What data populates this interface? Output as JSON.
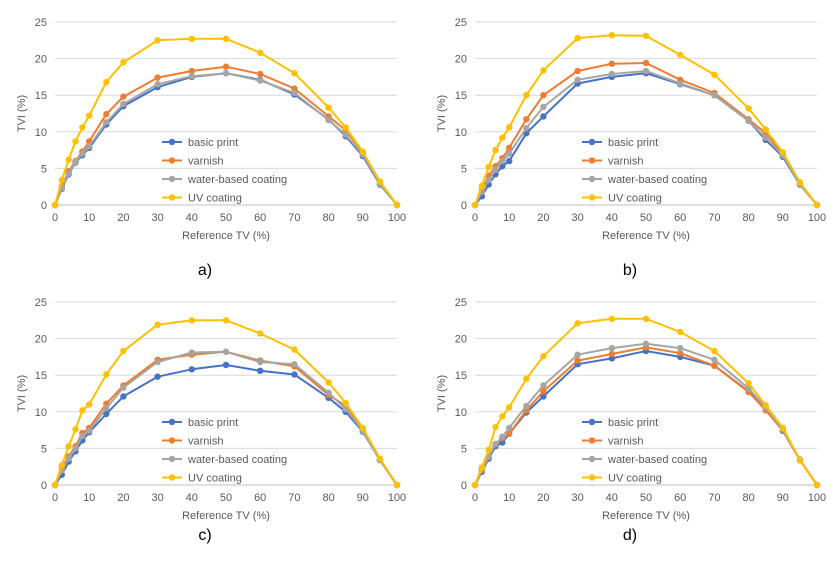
{
  "colors": {
    "basic_print": "#4472c4",
    "varnish": "#ed7d31",
    "water_based": "#a5a5a5",
    "uv": "#ffc000",
    "grid": "#d9d9d9",
    "axis": "#bfbfbf",
    "text": "#595959"
  },
  "panel_labels": [
    "a)",
    "b)",
    "c)",
    "d)"
  ],
  "chart_data": [
    {
      "type": "line",
      "panel": "a)",
      "xlabel": "Reference TV (%)",
      "ylabel": "TVI (%)",
      "xlim": [
        0,
        100
      ],
      "ylim": [
        0,
        25
      ],
      "xticks": [
        0,
        10,
        20,
        30,
        40,
        50,
        60,
        70,
        80,
        90,
        100
      ],
      "yticks": [
        0,
        5,
        10,
        15,
        20,
        25
      ],
      "grid": "horizontal",
      "legend": "lower-center",
      "x": [
        0,
        2,
        4,
        6,
        8,
        10,
        15,
        20,
        30,
        40,
        50,
        60,
        70,
        80,
        85,
        90,
        95,
        100
      ],
      "series": [
        {
          "name": "basic print",
          "color": "#4472c4",
          "values": [
            0,
            2.2,
            4.2,
            5.8,
            6.8,
            7.8,
            11.0,
            13.5,
            16.1,
            17.5,
            18.0,
            17.1,
            15.1,
            11.7,
            9.4,
            6.7,
            2.8,
            0
          ]
        },
        {
          "name": "varnish",
          "color": "#ed7d31",
          "values": [
            0,
            2.6,
            4.6,
            6.0,
            7.3,
            8.7,
            12.4,
            14.8,
            17.4,
            18.3,
            18.9,
            17.9,
            15.9,
            12.1,
            10.2,
            7.2,
            3.1,
            0
          ]
        },
        {
          "name": "water-based coating",
          "color": "#a5a5a5",
          "values": [
            0,
            2.3,
            4.3,
            5.9,
            7.0,
            8.0,
            11.3,
            13.8,
            16.5,
            17.6,
            18.0,
            17.0,
            15.3,
            11.6,
            9.6,
            6.9,
            2.9,
            0
          ]
        },
        {
          "name": "UV coating",
          "color": "#ffc000",
          "values": [
            0,
            3.4,
            6.2,
            8.7,
            10.6,
            12.2,
            16.8,
            19.5,
            22.5,
            22.7,
            22.7,
            20.8,
            18.0,
            13.3,
            10.6,
            7.3,
            3.2,
            0
          ]
        }
      ]
    },
    {
      "type": "line",
      "panel": "b)",
      "xlabel": "Reference TV (%)",
      "ylabel": "TVI (%)",
      "xlim": [
        0,
        100
      ],
      "ylim": [
        0,
        25
      ],
      "xticks": [
        0,
        10,
        20,
        30,
        40,
        50,
        60,
        70,
        80,
        90,
        100
      ],
      "yticks": [
        0,
        5,
        10,
        15,
        20,
        25
      ],
      "grid": "horizontal",
      "legend": "lower-center",
      "x": [
        0,
        2,
        4,
        6,
        8,
        10,
        15,
        20,
        30,
        40,
        50,
        60,
        70,
        80,
        85,
        90,
        95,
        100
      ],
      "series": [
        {
          "name": "basic print",
          "color": "#4472c4",
          "values": [
            0,
            1.2,
            2.8,
            4.2,
            5.3,
            6.0,
            9.8,
            12.1,
            16.6,
            17.5,
            18.0,
            16.5,
            15.0,
            11.5,
            8.9,
            6.6,
            2.8,
            0
          ]
        },
        {
          "name": "varnish",
          "color": "#ed7d31",
          "values": [
            0,
            2.0,
            4.0,
            5.3,
            6.4,
            7.8,
            11.7,
            15.0,
            18.3,
            19.3,
            19.4,
            17.1,
            15.3,
            11.7,
            9.8,
            7.0,
            2.9,
            0
          ]
        },
        {
          "name": "water-based coating",
          "color": "#a5a5a5",
          "values": [
            0,
            1.8,
            3.4,
            4.8,
            6.0,
            7.0,
            10.5,
            13.4,
            17.1,
            17.9,
            18.3,
            16.6,
            15.0,
            11.5,
            9.2,
            6.8,
            2.9,
            0
          ]
        },
        {
          "name": "UV coating",
          "color": "#ffc000",
          "values": [
            0,
            2.6,
            5.2,
            7.5,
            9.2,
            10.6,
            15.0,
            18.4,
            22.8,
            23.2,
            23.1,
            20.5,
            17.8,
            13.2,
            10.3,
            7.2,
            3.1,
            0
          ]
        }
      ]
    },
    {
      "type": "line",
      "panel": "c)",
      "xlabel": "Reference TV (%)",
      "ylabel": "TVI (%)",
      "xlim": [
        0,
        100
      ],
      "ylim": [
        0,
        25
      ],
      "xticks": [
        0,
        10,
        20,
        30,
        40,
        50,
        60,
        70,
        80,
        90,
        100
      ],
      "yticks": [
        0,
        5,
        10,
        15,
        20,
        25
      ],
      "grid": "horizontal",
      "legend": "lower-center",
      "x": [
        0,
        2,
        4,
        6,
        8,
        10,
        15,
        20,
        30,
        40,
        50,
        60,
        70,
        80,
        85,
        90,
        95,
        100
      ],
      "series": [
        {
          "name": "basic print",
          "color": "#4472c4",
          "values": [
            0,
            1.4,
            3.2,
            4.6,
            6.1,
            7.2,
            9.7,
            12.1,
            14.8,
            15.8,
            16.4,
            15.6,
            15.1,
            11.9,
            10.0,
            7.3,
            3.4,
            0
          ]
        },
        {
          "name": "varnish",
          "color": "#ed7d31",
          "values": [
            0,
            2.3,
            3.9,
            5.3,
            7.1,
            7.8,
            11.1,
            13.6,
            17.1,
            17.8,
            18.2,
            17.0,
            16.2,
            12.3,
            10.8,
            7.6,
            3.5,
            0
          ]
        },
        {
          "name": "water-based coating",
          "color": "#a5a5a5",
          "values": [
            0,
            2.0,
            3.6,
            5.0,
            6.7,
            7.4,
            10.5,
            13.3,
            16.8,
            18.1,
            18.2,
            16.8,
            16.5,
            12.6,
            10.4,
            7.4,
            3.4,
            0
          ]
        },
        {
          "name": "UV coating",
          "color": "#ffc000",
          "values": [
            0,
            2.7,
            5.3,
            7.6,
            10.2,
            11.0,
            15.1,
            18.3,
            21.9,
            22.5,
            22.5,
            20.7,
            18.5,
            14.0,
            11.2,
            7.8,
            3.6,
            0
          ]
        }
      ]
    },
    {
      "type": "line",
      "panel": "d)",
      "xlabel": "Reference TV (%)",
      "ylabel": "TVI (%)",
      "xlim": [
        0,
        100
      ],
      "ylim": [
        0,
        25
      ],
      "xticks": [
        0,
        10,
        20,
        30,
        40,
        50,
        60,
        70,
        80,
        90,
        100
      ],
      "yticks": [
        0,
        5,
        10,
        15,
        20,
        25
      ],
      "grid": "horizontal",
      "legend": "lower-center",
      "x": [
        0,
        2,
        4,
        6,
        8,
        10,
        15,
        20,
        30,
        40,
        50,
        60,
        70,
        80,
        85,
        90,
        95,
        100
      ],
      "series": [
        {
          "name": "basic print",
          "color": "#4472c4",
          "values": [
            0,
            1.8,
            3.6,
            5.3,
            5.8,
            7.0,
            9.9,
            12.1,
            16.5,
            17.3,
            18.3,
            17.5,
            16.3,
            12.8,
            10.3,
            7.4,
            3.4,
            0
          ]
        },
        {
          "name": "varnish",
          "color": "#ed7d31",
          "values": [
            0,
            2.0,
            3.8,
            5.6,
            6.4,
            7.0,
            10.2,
            12.8,
            17.0,
            17.9,
            18.8,
            18.0,
            16.3,
            12.7,
            10.2,
            7.5,
            3.4,
            0
          ]
        },
        {
          "name": "water-based coating",
          "color": "#a5a5a5",
          "values": [
            0,
            2.1,
            3.9,
            5.6,
            6.6,
            7.8,
            10.8,
            13.6,
            17.8,
            18.7,
            19.3,
            18.7,
            17.1,
            13.2,
            10.6,
            7.6,
            3.5,
            0
          ]
        },
        {
          "name": "UV coating",
          "color": "#ffc000",
          "values": [
            0,
            2.4,
            4.8,
            7.9,
            9.4,
            10.6,
            14.5,
            17.6,
            22.1,
            22.7,
            22.7,
            20.9,
            18.3,
            13.9,
            10.9,
            7.8,
            3.4,
            0
          ]
        }
      ]
    }
  ]
}
